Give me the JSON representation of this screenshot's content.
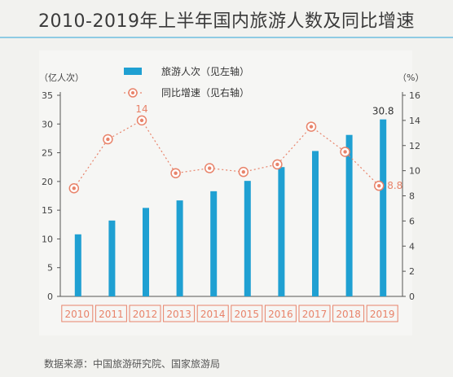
{
  "title": "2010-2019年上半年国内旅游人数及同比增速",
  "source": "数据来源：中国旅游研究院、国家旅游局",
  "colors": {
    "bar": "#1fa0d2",
    "line": "#e8836a",
    "axis": "#555555",
    "label_box": "#e8836a"
  },
  "chart_data": {
    "type": "bar+line",
    "categories": [
      "2010",
      "2011",
      "2012",
      "2013",
      "2014",
      "2015",
      "2016",
      "2017",
      "2018",
      "2019"
    ],
    "left_axis": {
      "unit": "（亿人次）",
      "range": [
        0,
        35
      ],
      "ticks": [
        "0",
        "5",
        "10",
        "15",
        "20",
        "25",
        "30",
        "35"
      ]
    },
    "right_axis": {
      "unit": "（%）",
      "range": [
        0,
        16
      ],
      "ticks": [
        "0",
        "2",
        "4",
        "6",
        "8",
        "10",
        "12",
        "14",
        "16"
      ]
    },
    "series": [
      {
        "name": "旅游人次（见左轴）",
        "type": "bar",
        "axis": "left",
        "values": [
          10.8,
          13.2,
          15.4,
          16.7,
          18.3,
          20.1,
          22.5,
          25.3,
          28.1,
          30.8
        ]
      },
      {
        "name": "同比增速（见右轴）",
        "type": "line",
        "axis": "right",
        "values": [
          8.6,
          12.5,
          14.0,
          9.8,
          10.2,
          9.9,
          10.5,
          13.5,
          11.5,
          8.8
        ]
      }
    ],
    "annotations": [
      {
        "series": 1,
        "index": 2,
        "text": "14"
      },
      {
        "series": 0,
        "index": 9,
        "text": "30.8"
      },
      {
        "series": 1,
        "index": 9,
        "text": "8.8"
      }
    ],
    "legend": "top-center",
    "grid": false
  }
}
